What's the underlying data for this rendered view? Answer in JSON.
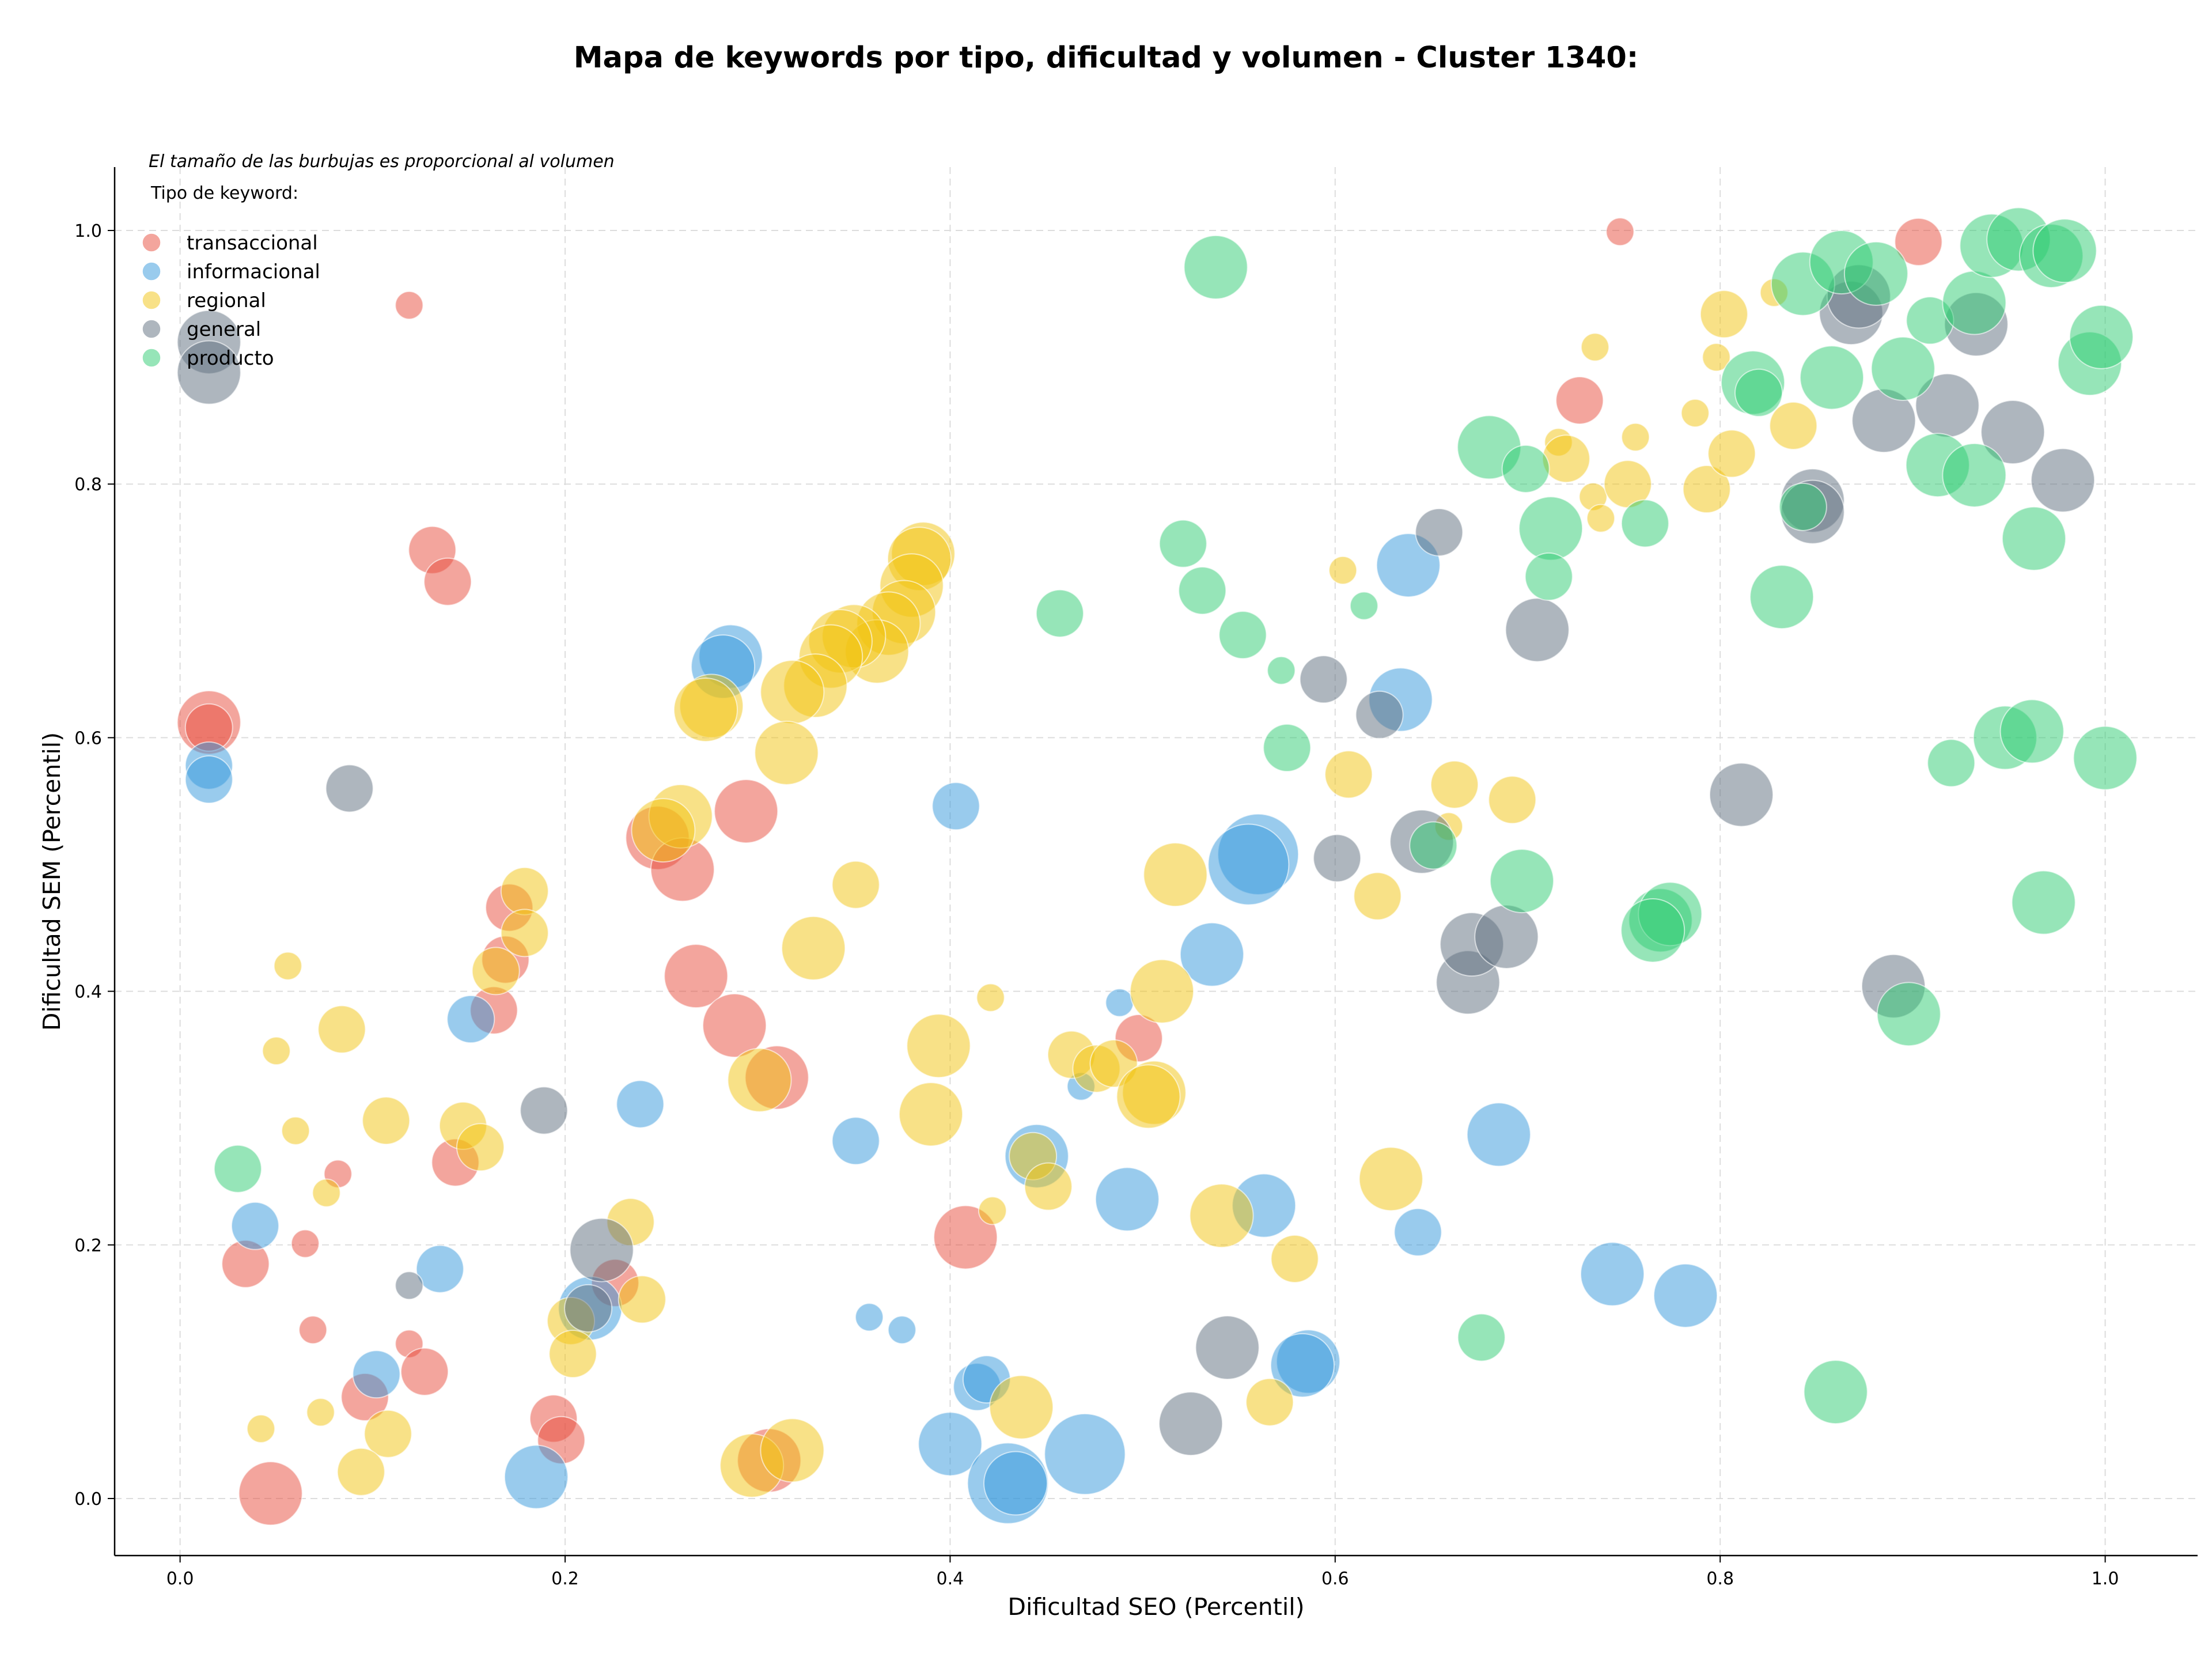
{
  "chart_data": {
    "type": "scatter",
    "title": "Mapa de keywords por tipo, dificultad y volumen - Cluster 1340:",
    "xlabel": "Dificultad SEO (Percentil)",
    "ylabel": "Dificultad SEM (Percentil)",
    "xlim": [
      -0.034,
      1.048
    ],
    "ylim": [
      -0.045,
      1.05
    ],
    "xticks": [
      "0.0",
      "0.2",
      "0.4",
      "0.6",
      "0.8",
      "1.0"
    ],
    "yticks": [
      "0.0",
      "0.2",
      "0.4",
      "0.6",
      "0.8",
      "1.0"
    ],
    "grid": true,
    "legend_position": "top-left",
    "legend_title": "Tipo de keyword:",
    "note": "El tamaño de las burbujas es proporcional al volumen",
    "size_encoding": "bubble radius ~ volumen (relative size 1-4)",
    "series": [
      {
        "name": "transaccional",
        "color": "#e74c3c",
        "points": [
          [
            0.119,
            0.941,
            1
          ],
          [
            0.748,
            0.999,
            1
          ],
          [
            0.903,
            0.991,
            2
          ],
          [
            0.727,
            0.866,
            2
          ],
          [
            0.131,
            0.748,
            2
          ],
          [
            0.139,
            0.723,
            2
          ],
          [
            0.015,
            0.612,
            3
          ],
          [
            0.015,
            0.608,
            2
          ],
          [
            0.294,
            0.542,
            3
          ],
          [
            0.248,
            0.521,
            3
          ],
          [
            0.261,
            0.496,
            3
          ],
          [
            0.171,
            0.466,
            2
          ],
          [
            0.169,
            0.425,
            2
          ],
          [
            0.163,
            0.385,
            2
          ],
          [
            0.268,
            0.412,
            3
          ],
          [
            0.288,
            0.373,
            3
          ],
          [
            0.31,
            0.332,
            3
          ],
          [
            0.498,
            0.363,
            2
          ],
          [
            0.082,
            0.256,
            1
          ],
          [
            0.143,
            0.265,
            2
          ],
          [
            0.065,
            0.201,
            1
          ],
          [
            0.034,
            0.185,
            2
          ],
          [
            0.408,
            0.206,
            3
          ],
          [
            0.226,
            0.17,
            2
          ],
          [
            0.069,
            0.133,
            1
          ],
          [
            0.119,
            0.122,
            1
          ],
          [
            0.127,
            0.1,
            2
          ],
          [
            0.096,
            0.08,
            2
          ],
          [
            0.194,
            0.063,
            2
          ],
          [
            0.198,
            0.046,
            2
          ],
          [
            0.306,
            0.03,
            3
          ],
          [
            0.047,
            0.004,
            3
          ]
        ]
      },
      {
        "name": "informacional",
        "color": "#3498db",
        "points": [
          [
            0.015,
            0.578,
            2
          ],
          [
            0.015,
            0.567,
            2
          ],
          [
            0.286,
            0.664,
            3
          ],
          [
            0.282,
            0.656,
            3
          ],
          [
            0.403,
            0.546,
            2
          ],
          [
            0.638,
            0.736,
            3
          ],
          [
            0.634,
            0.63,
            3
          ],
          [
            0.56,
            0.508,
            4
          ],
          [
            0.555,
            0.5,
            4
          ],
          [
            0.536,
            0.429,
            3
          ],
          [
            0.151,
            0.378,
            2
          ],
          [
            0.488,
            0.391,
            1
          ],
          [
            0.468,
            0.325,
            1
          ],
          [
            0.239,
            0.311,
            2
          ],
          [
            0.351,
            0.282,
            2
          ],
          [
            0.445,
            0.27,
            3
          ],
          [
            0.492,
            0.236,
            3
          ],
          [
            0.563,
            0.231,
            3
          ],
          [
            0.685,
            0.287,
            3
          ],
          [
            0.643,
            0.21,
            2
          ],
          [
            0.039,
            0.215,
            2
          ],
          [
            0.135,
            0.181,
            2
          ],
          [
            0.213,
            0.15,
            3
          ],
          [
            0.358,
            0.143,
            1
          ],
          [
            0.375,
            0.133,
            1
          ],
          [
            0.102,
            0.098,
            2
          ],
          [
            0.414,
            0.088,
            2
          ],
          [
            0.419,
            0.094,
            2
          ],
          [
            0.4,
            0.043,
            3
          ],
          [
            0.43,
            0.012,
            4
          ],
          [
            0.434,
            0.012,
            3
          ],
          [
            0.47,
            0.035,
            4
          ],
          [
            0.185,
            0.017,
            3
          ],
          [
            0.586,
            0.108,
            3
          ],
          [
            0.583,
            0.105,
            3
          ],
          [
            0.744,
            0.177,
            3
          ],
          [
            0.782,
            0.16,
            3
          ]
        ]
      },
      {
        "name": "regional",
        "color": "#f1c40f",
        "points": [
          [
            0.386,
            0.745,
            3
          ],
          [
            0.384,
            0.741,
            3
          ],
          [
            0.38,
            0.72,
            3
          ],
          [
            0.376,
            0.699,
            3
          ],
          [
            0.368,
            0.69,
            3
          ],
          [
            0.362,
            0.668,
            3
          ],
          [
            0.35,
            0.68,
            3
          ],
          [
            0.343,
            0.676,
            3
          ],
          [
            0.338,
            0.664,
            3
          ],
          [
            0.33,
            0.641,
            3
          ],
          [
            0.318,
            0.636,
            3
          ],
          [
            0.315,
            0.588,
            3
          ],
          [
            0.276,
            0.625,
            3
          ],
          [
            0.273,
            0.622,
            3
          ],
          [
            0.26,
            0.538,
            3
          ],
          [
            0.251,
            0.527,
            3
          ],
          [
            0.179,
            0.479,
            2
          ],
          [
            0.179,
            0.446,
            2
          ],
          [
            0.164,
            0.416,
            2
          ],
          [
            0.056,
            0.42,
            1
          ],
          [
            0.05,
            0.353,
            1
          ],
          [
            0.084,
            0.37,
            2
          ],
          [
            0.107,
            0.298,
            2
          ],
          [
            0.147,
            0.294,
            2
          ],
          [
            0.156,
            0.277,
            2
          ],
          [
            0.06,
            0.29,
            1
          ],
          [
            0.076,
            0.241,
            1
          ],
          [
            0.234,
            0.218,
            2
          ],
          [
            0.24,
            0.157,
            2
          ],
          [
            0.203,
            0.14,
            2
          ],
          [
            0.204,
            0.114,
            2
          ],
          [
            0.073,
            0.068,
            1
          ],
          [
            0.108,
            0.051,
            2
          ],
          [
            0.094,
            0.021,
            2
          ],
          [
            0.042,
            0.055,
            1
          ],
          [
            0.297,
            0.026,
            3
          ],
          [
            0.318,
            0.038,
            3
          ],
          [
            0.301,
            0.33,
            3
          ],
          [
            0.329,
            0.434,
            3
          ],
          [
            0.351,
            0.484,
            2
          ],
          [
            0.394,
            0.357,
            3
          ],
          [
            0.39,
            0.303,
            3
          ],
          [
            0.421,
            0.395,
            1
          ],
          [
            0.422,
            0.227,
            1
          ],
          [
            0.437,
            0.072,
            3
          ],
          [
            0.443,
            0.27,
            2
          ],
          [
            0.451,
            0.246,
            2
          ],
          [
            0.463,
            0.35,
            2
          ],
          [
            0.476,
            0.339,
            2
          ],
          [
            0.485,
            0.343,
            2
          ],
          [
            0.51,
            0.4,
            3
          ],
          [
            0.517,
            0.492,
            3
          ],
          [
            0.506,
            0.32,
            3
          ],
          [
            0.503,
            0.317,
            3
          ],
          [
            0.541,
            0.223,
            3
          ],
          [
            0.579,
            0.189,
            2
          ],
          [
            0.566,
            0.076,
            2
          ],
          [
            0.629,
            0.252,
            3
          ],
          [
            0.622,
            0.475,
            2
          ],
          [
            0.607,
            0.571,
            2
          ],
          [
            0.604,
            0.732,
            1
          ],
          [
            0.659,
            0.53,
            1
          ],
          [
            0.662,
            0.563,
            2
          ],
          [
            0.692,
            0.551,
            2
          ],
          [
            0.716,
            0.833,
            1
          ],
          [
            0.72,
            0.82,
            2
          ],
          [
            0.735,
            0.908,
            1
          ],
          [
            0.734,
            0.79,
            1
          ],
          [
            0.738,
            0.773,
            1
          ],
          [
            0.752,
            0.8,
            2
          ],
          [
            0.756,
            0.837,
            1
          ],
          [
            0.787,
            0.856,
            1
          ],
          [
            0.793,
            0.796,
            2
          ],
          [
            0.798,
            0.9,
            1
          ],
          [
            0.802,
            0.934,
            2
          ],
          [
            0.806,
            0.824,
            2
          ],
          [
            0.828,
            0.951,
            1
          ],
          [
            0.838,
            0.846,
            2
          ]
        ]
      },
      {
        "name": "general",
        "color": "#5d6d7e",
        "points": [
          [
            0.015,
            0.912,
            3
          ],
          [
            0.015,
            0.888,
            3
          ],
          [
            0.088,
            0.56,
            2
          ],
          [
            0.189,
            0.306,
            2
          ],
          [
            0.219,
            0.196,
            3
          ],
          [
            0.119,
            0.168,
            1
          ],
          [
            0.212,
            0.15,
            2
          ],
          [
            0.544,
            0.119,
            3
          ],
          [
            0.525,
            0.059,
            3
          ],
          [
            0.594,
            0.646,
            2
          ],
          [
            0.601,
            0.505,
            2
          ],
          [
            0.623,
            0.618,
            2
          ],
          [
            0.654,
            0.762,
            2
          ],
          [
            0.645,
            0.518,
            3
          ],
          [
            0.669,
            0.407,
            3
          ],
          [
            0.671,
            0.437,
            3
          ],
          [
            0.689,
            0.443,
            3
          ],
          [
            0.705,
            0.685,
            3
          ],
          [
            0.811,
            0.555,
            3
          ],
          [
            0.848,
            0.787,
            3
          ],
          [
            0.848,
            0.778,
            3
          ],
          [
            0.868,
            0.935,
            3
          ],
          [
            0.872,
            0.948,
            3
          ],
          [
            0.885,
            0.85,
            3
          ],
          [
            0.918,
            0.862,
            3
          ],
          [
            0.933,
            0.926,
            3
          ],
          [
            0.952,
            0.841,
            3
          ],
          [
            0.978,
            0.803,
            3
          ],
          [
            0.89,
            0.404,
            3
          ]
        ]
      },
      {
        "name": "producto",
        "color": "#2ecc71",
        "points": [
          [
            0.538,
            0.971,
            3
          ],
          [
            0.521,
            0.753,
            2
          ],
          [
            0.531,
            0.716,
            2
          ],
          [
            0.552,
            0.681,
            2
          ],
          [
            0.457,
            0.698,
            2
          ],
          [
            0.572,
            0.653,
            1
          ],
          [
            0.575,
            0.592,
            2
          ],
          [
            0.615,
            0.704,
            1
          ],
          [
            0.03,
            0.26,
            2
          ],
          [
            0.651,
            0.515,
            2
          ],
          [
            0.68,
            0.829,
            3
          ],
          [
            0.699,
            0.812,
            2
          ],
          [
            0.712,
            0.765,
            3
          ],
          [
            0.711,
            0.727,
            2
          ],
          [
            0.697,
            0.487,
            3
          ],
          [
            0.676,
            0.127,
            2
          ],
          [
            0.761,
            0.769,
            2
          ],
          [
            0.769,
            0.456,
            3
          ],
          [
            0.774,
            0.461,
            3
          ],
          [
            0.765,
            0.448,
            3
          ],
          [
            0.817,
            0.88,
            3
          ],
          [
            0.82,
            0.872,
            2
          ],
          [
            0.832,
            0.711,
            3
          ],
          [
            0.843,
            0.782,
            2
          ],
          [
            0.843,
            0.958,
            3
          ],
          [
            0.858,
            0.884,
            3
          ],
          [
            0.863,
            0.975,
            3
          ],
          [
            0.881,
            0.966,
            3
          ],
          [
            0.895,
            0.891,
            3
          ],
          [
            0.909,
            0.929,
            2
          ],
          [
            0.913,
            0.815,
            3
          ],
          [
            0.932,
            0.807,
            3
          ],
          [
            0.932,
            0.943,
            3
          ],
          [
            0.941,
            0.988,
            3
          ],
          [
            0.955,
            0.993,
            3
          ],
          [
            0.972,
            0.98,
            3
          ],
          [
            0.979,
            0.984,
            3
          ],
          [
            0.963,
            0.757,
            3
          ],
          [
            0.992,
            0.895,
            3
          ],
          [
            0.998,
            0.916,
            3
          ],
          [
            0.948,
            0.6,
            3
          ],
          [
            0.962,
            0.605,
            3
          ],
          [
            1.0,
            0.584,
            3
          ],
          [
            0.92,
            0.58,
            2
          ],
          [
            0.968,
            0.47,
            3
          ],
          [
            0.898,
            0.382,
            3
          ],
          [
            0.86,
            0.084,
            3
          ]
        ]
      }
    ]
  }
}
